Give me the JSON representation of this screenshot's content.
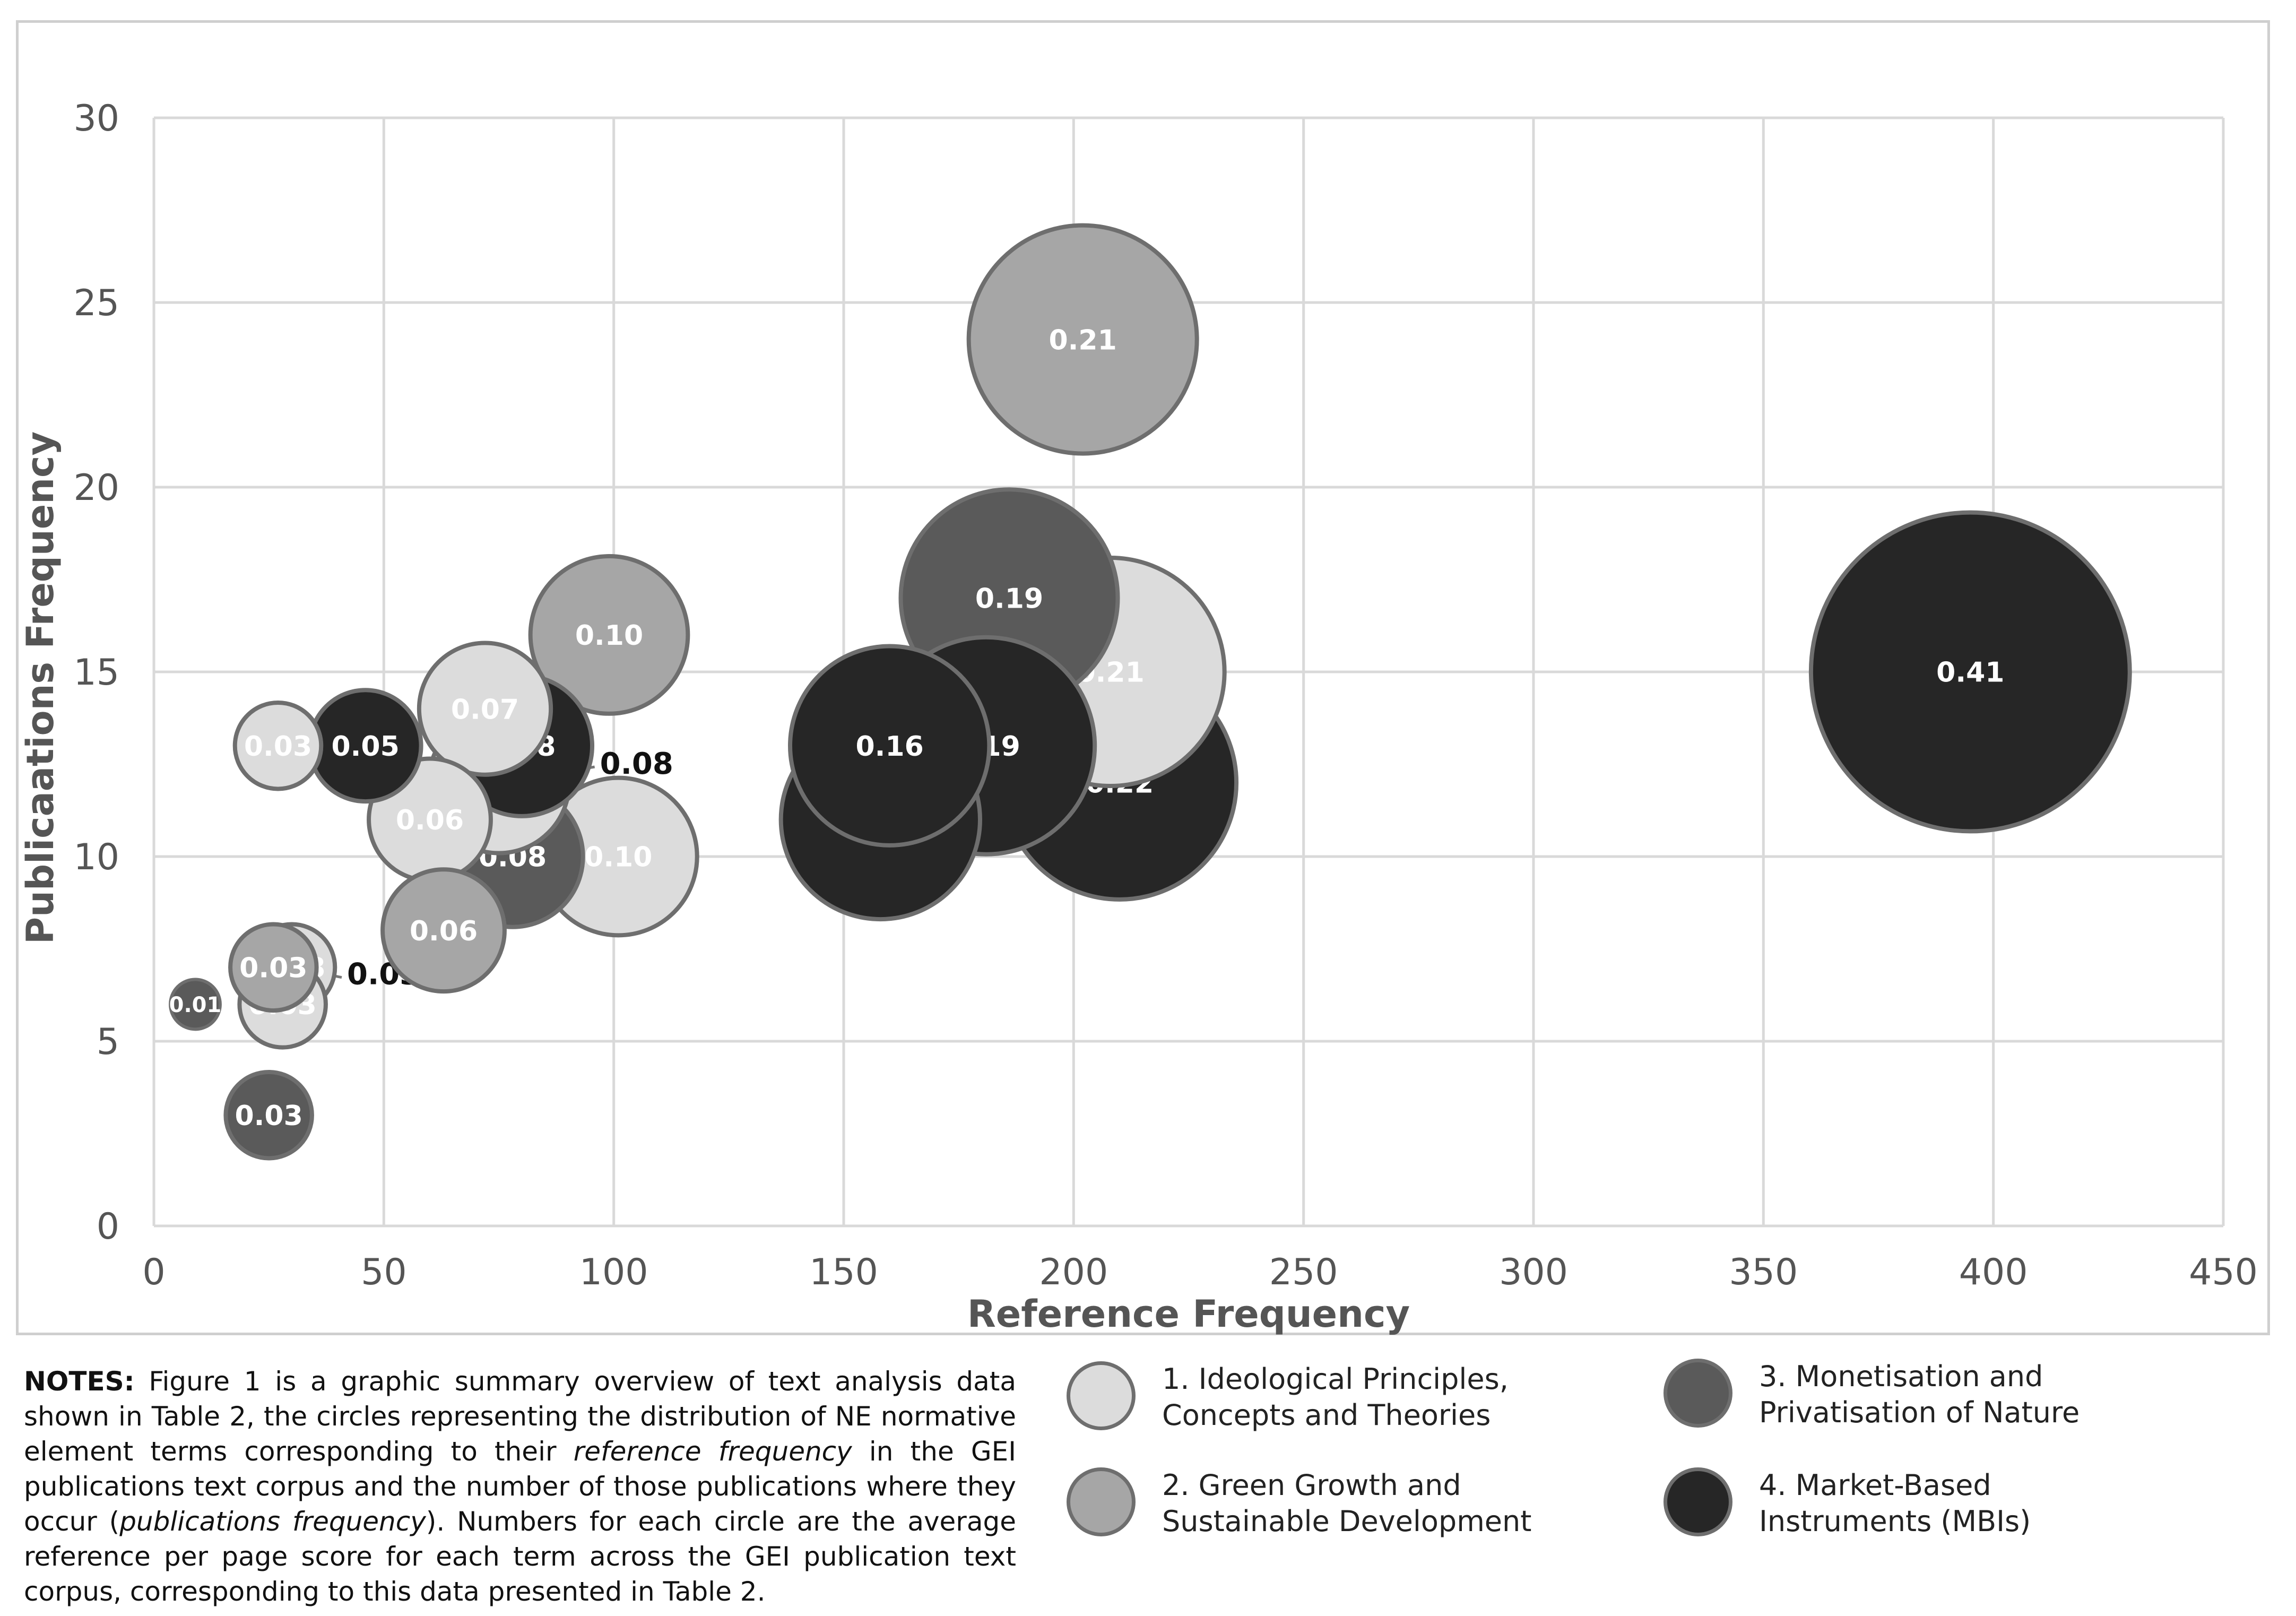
{
  "chart_data": {
    "type": "bubble",
    "xlabel": "Reference Frequency",
    "ylabel": "Publicaations Frequency",
    "xlim": [
      0,
      450
    ],
    "ylim": [
      0,
      30
    ],
    "x_ticks": [
      "0",
      "50",
      "100",
      "150",
      "200",
      "250",
      "300",
      "350",
      "400",
      "450"
    ],
    "y_ticks": [
      "0",
      "5",
      "10",
      "15",
      "20",
      "25",
      "30"
    ],
    "grid": true,
    "categories": [
      {
        "id": 1,
        "name": "1. Ideological Principles, Concepts and Theories",
        "color": "#dcdcdc",
        "label_color": "#ffffff"
      },
      {
        "id": 2,
        "name": "2. Green Growth and Sustainable Development",
        "color": "#a6a6a6",
        "label_color": "#ffffff"
      },
      {
        "id": 3,
        "name": "3. Monetisation and Privatisation of Nature",
        "color": "#5a5a5a",
        "label_color": "#ffffff"
      },
      {
        "id": 4,
        "name": "4. Market-Based Instruments (MBIs)",
        "color": "#262626",
        "label_color": "#ffffff"
      }
    ],
    "points": [
      {
        "x": 202,
        "y": 24,
        "score": 0.21,
        "label": "0.21",
        "category": 2
      },
      {
        "x": 208,
        "y": 15,
        "score": 0.21,
        "label": "0.21",
        "category": 1
      },
      {
        "x": 186,
        "y": 17,
        "score": 0.19,
        "label": "0.19",
        "category": 3
      },
      {
        "x": 395,
        "y": 15,
        "score": 0.41,
        "label": "0.41",
        "category": 4
      },
      {
        "x": 158,
        "y": 11,
        "score": 0.16,
        "label": "0.16",
        "category": 4
      },
      {
        "x": 210,
        "y": 12,
        "score": 0.22,
        "label": "0.22",
        "category": 4
      },
      {
        "x": 181,
        "y": 13,
        "score": 0.19,
        "label": "0.19",
        "category": 4
      },
      {
        "x": 160,
        "y": 13,
        "score": 0.16,
        "label": "0.16",
        "category": 4
      },
      {
        "x": 99,
        "y": 16,
        "score": 0.1,
        "label": "0.10",
        "category": 2
      },
      {
        "x": 72,
        "y": 14,
        "score": 0.07,
        "label": "0.07",
        "category": 1
      },
      {
        "x": 101,
        "y": 10,
        "score": 0.1,
        "label": "0.10",
        "category": 1
      },
      {
        "x": 60,
        "y": 11,
        "score": 0.06,
        "label": "0.06",
        "category": 1
      },
      {
        "x": 63,
        "y": 8,
        "score": 0.06,
        "label": "0.06",
        "category": 2
      },
      {
        "x": 78,
        "y": 10,
        "score": 0.08,
        "label": "0.08",
        "category": 3
      },
      {
        "x": 75,
        "y": 12,
        "score": 0.08,
        "label": "0.08",
        "category": 1
      },
      {
        "x": 80,
        "y": 13,
        "score": 0.08,
        "label": "0.08",
        "category": 4
      },
      {
        "x": 27,
        "y": 13,
        "score": 0.03,
        "label": "0.03",
        "category": 1
      },
      {
        "x": 46,
        "y": 13,
        "score": 0.05,
        "label": "0.05",
        "category": 4
      },
      {
        "x": 30,
        "y": 7,
        "score": 0.03,
        "label": "0.03",
        "category": 1
      },
      {
        "x": 28,
        "y": 6,
        "score": 0.03,
        "label": "0.03",
        "category": 1
      },
      {
        "x": 26,
        "y": 7,
        "score": 0.03,
        "label": "0.03",
        "category": 2
      },
      {
        "x": 9,
        "y": 6,
        "score": 0.01,
        "label": "0.01",
        "category": 3
      },
      {
        "x": 25,
        "y": 3,
        "score": 0.03,
        "label": "0.03",
        "category": 3
      }
    ],
    "callouts": [
      {
        "label": "0.08",
        "from": [
          75,
          12
        ],
        "to": [
          97,
          12.5
        ]
      },
      {
        "label": "0.03",
        "from": [
          30,
          7
        ],
        "to": [
          42,
          6.8
        ]
      }
    ]
  },
  "notes": {
    "heading": "NOTES:",
    "text_1": " Figure 1 is a graphic summary overview of text analysis data shown in Table 2, the circles representing the distribution of NE normative element terms corresponding to their ",
    "em_1": "reference frequency",
    "text_2": " in the GEI publications text corpus and the number of those publications where they occur (",
    "em_2": "publications frequency",
    "text_3": "). Numbers for each circle are the average reference per page score for each term across the GEI publication text corpus, corresponding to this data presented in Table 2."
  },
  "legend": [
    {
      "label": "1. Ideological Principles, Concepts and Theories",
      "color": "#dcdcdc"
    },
    {
      "label": "2. Green Growth and Sustainable Development",
      "color": "#a6a6a6"
    },
    {
      "label": "3. Monetisation and Privatisation of Nature",
      "color": "#5a5a5a"
    },
    {
      "label": "4. Market-Based Instruments (MBIs)",
      "color": "#262626"
    }
  ]
}
